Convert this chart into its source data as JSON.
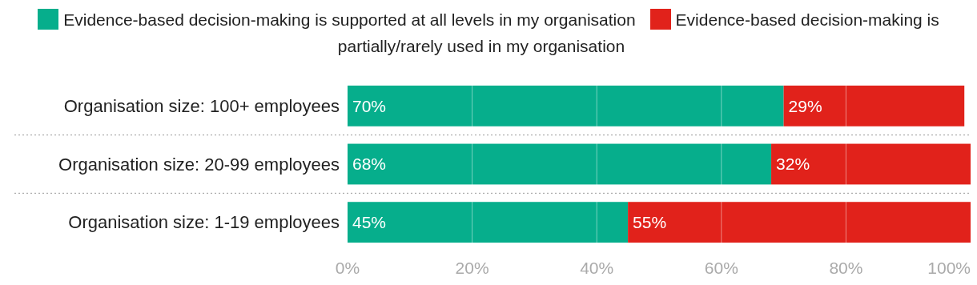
{
  "chart_data": {
    "type": "bar",
    "orientation": "horizontal",
    "stacked": true,
    "categories": [
      "Organisation size: 100+ employees",
      "Organisation size: 20-99 employees",
      "Organisation size: 1-19 employees"
    ],
    "series": [
      {
        "name": "Evidence-based decision-making is supported at all levels in my organisation",
        "color": "#06ae8c",
        "values": [
          70,
          68,
          45
        ],
        "value_labels": [
          "70%",
          "68%",
          "45%"
        ]
      },
      {
        "name": "Evidence-based decision-making is partially/rarely used in my organisation",
        "color": "#e1221b",
        "values": [
          29,
          32,
          55
        ],
        "value_labels": [
          "29%",
          "32%",
          "55%"
        ]
      }
    ],
    "xlim": [
      0,
      100
    ],
    "xticks": [
      {
        "value": 0,
        "label": "0%"
      },
      {
        "value": 20,
        "label": "20%"
      },
      {
        "value": 40,
        "label": "40%"
      },
      {
        "value": 60,
        "label": "60%"
      },
      {
        "value": 80,
        "label": "80%"
      },
      {
        "value": 100,
        "label": "100%"
      }
    ],
    "grid": "x",
    "legend": "top"
  }
}
